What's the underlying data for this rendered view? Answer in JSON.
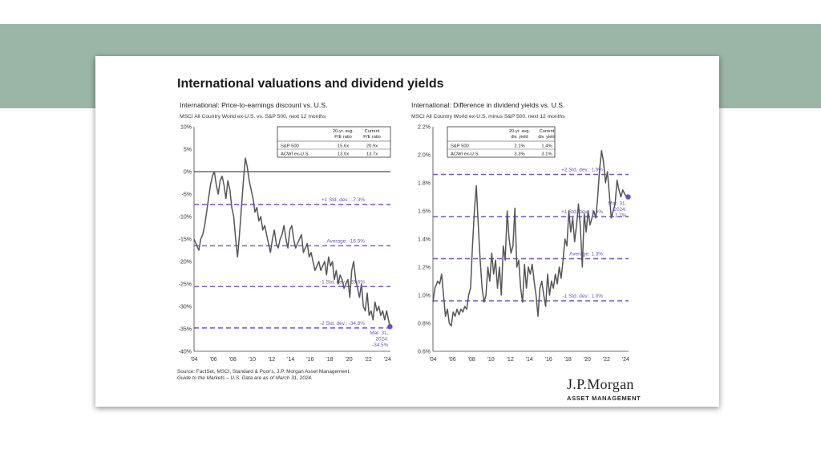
{
  "slide_title": "International valuations and dividend yields",
  "source": "Source: FactSet, MSCI, Standard & Poor's, J.P. Morgan Asset Management.",
  "guide": "Guide to the Markets – U.S. Data are as of March 31, 2024.",
  "logo": {
    "name": "J.P.Morgan",
    "subtitle": "ASSET MANAGEMENT"
  },
  "colors": {
    "band": "#9bb5a7",
    "line": "#555555",
    "dashed": "#7352d8",
    "dot": "#6e4bd6",
    "label": "#6a55b8"
  },
  "chart_data": [
    {
      "type": "line",
      "title": "International: Price-to-earnings discount vs. U.S.",
      "subtitle": "MSCI All Country World ex-U.S. vs. S&P 500, next 12 months",
      "xlabels": [
        "'04",
        "'06",
        "'08",
        "'10",
        "'12",
        "'14",
        "'16",
        "'18",
        "'20",
        "'22",
        "'24"
      ],
      "xrange": [
        2004,
        2024.3
      ],
      "ylim": [
        -40,
        10
      ],
      "yticks": [
        10,
        5,
        0,
        -5,
        -10,
        -15,
        -20,
        -25,
        -30,
        -35,
        -40
      ],
      "ytick_labels": [
        "10%",
        "5%",
        "0%",
        "-5%",
        "-10%",
        "-15%",
        "-20%",
        "-25%",
        "-30%",
        "-35%",
        "-40%"
      ],
      "reference_lines": [
        {
          "value": -7.3,
          "label": "+1 Std. dev.: -7.3%"
        },
        {
          "value": -16.5,
          "label": "Average: -16.5%"
        },
        {
          "value": -25.6,
          "label": "-1 Std. dev.: -25.6%"
        },
        {
          "value": -34.8,
          "label": "-2 Std. dev.: -34.8%"
        }
      ],
      "zero_line": 0,
      "latest": {
        "x": 2024.25,
        "y": -34.5,
        "label": [
          "Mar. 31,",
          "2024:",
          "-34.5%"
        ]
      },
      "table": {
        "headers": [
          "",
          "20-yr. avg.\nP/E ratio",
          "Current\nP/E ratio"
        ],
        "rows": [
          [
            "S&P 500",
            "15.6x",
            "20.9x"
          ],
          [
            "ACWI ex-U.S.",
            "13.0x",
            "13.7x"
          ]
        ]
      },
      "series": [
        {
          "name": "P/E discount",
          "x": [
            2004.0,
            2004.2,
            2004.5,
            2004.7,
            2004.9,
            2005.1,
            2005.3,
            2005.5,
            2005.7,
            2005.9,
            2006.1,
            2006.3,
            2006.5,
            2006.7,
            2006.9,
            2007.1,
            2007.3,
            2007.5,
            2007.7,
            2007.9,
            2008.1,
            2008.3,
            2008.5,
            2008.7,
            2008.9,
            2009.1,
            2009.3,
            2009.5,
            2009.7,
            2009.9,
            2010.1,
            2010.3,
            2010.5,
            2010.7,
            2010.9,
            2011.1,
            2011.3,
            2011.5,
            2011.7,
            2011.9,
            2012.1,
            2012.3,
            2012.5,
            2012.7,
            2012.9,
            2013.1,
            2013.3,
            2013.5,
            2013.7,
            2013.9,
            2014.1,
            2014.3,
            2014.5,
            2014.7,
            2014.9,
            2015.1,
            2015.3,
            2015.5,
            2015.7,
            2015.9,
            2016.1,
            2016.3,
            2016.5,
            2016.7,
            2016.9,
            2017.1,
            2017.3,
            2017.5,
            2017.7,
            2017.9,
            2018.1,
            2018.3,
            2018.5,
            2018.7,
            2018.9,
            2019.1,
            2019.3,
            2019.5,
            2019.7,
            2019.9,
            2020.1,
            2020.3,
            2020.5,
            2020.7,
            2020.9,
            2021.1,
            2021.3,
            2021.5,
            2021.7,
            2021.9,
            2022.1,
            2022.3,
            2022.5,
            2022.7,
            2022.9,
            2023.1,
            2023.3,
            2023.5,
            2023.7,
            2023.9,
            2024.1,
            2024.25
          ],
          "y": [
            -15,
            -16,
            -17.5,
            -15,
            -14,
            -12,
            -9,
            -6,
            -3,
            -1,
            0,
            -3,
            -5,
            -2,
            -1,
            -3,
            -6,
            -2,
            -4,
            -8,
            -10,
            -15,
            -19,
            -14,
            -8,
            -2,
            3,
            1,
            -2,
            -4,
            -6,
            -9,
            -8,
            -11,
            -10,
            -13,
            -12,
            -14,
            -16,
            -18,
            -15,
            -13,
            -16,
            -17,
            -15,
            -14,
            -12,
            -15,
            -17,
            -13,
            -12,
            -15,
            -17,
            -16,
            -15,
            -14,
            -18,
            -17,
            -16,
            -19,
            -18,
            -20,
            -22,
            -21,
            -20,
            -22,
            -21,
            -20,
            -23,
            -19,
            -21,
            -20,
            -24,
            -22,
            -25,
            -23,
            -24,
            -26,
            -25,
            -24,
            -28,
            -22,
            -20,
            -24,
            -26,
            -28,
            -25,
            -30,
            -31,
            -27,
            -32,
            -31,
            -33,
            -29,
            -31,
            -30,
            -32,
            -31,
            -33,
            -31,
            -33,
            -34.5
          ]
        }
      ]
    },
    {
      "type": "line",
      "title": "International: Difference in dividend yields vs. U.S.",
      "subtitle": "MSCI All Country World ex-U.S. minus S&P 500, next 12 months",
      "xlabels": [
        "'04",
        "'06",
        "'08",
        "'10",
        "'12",
        "'14",
        "'16",
        "'18",
        "'20",
        "'22",
        "'24"
      ],
      "xrange": [
        2004,
        2024.3
      ],
      "ylim": [
        0.6,
        2.2
      ],
      "yticks": [
        2.2,
        2.0,
        1.8,
        1.6,
        1.4,
        1.2,
        1.0,
        0.8,
        0.6
      ],
      "ytick_labels": [
        "2.2%",
        "2.0%",
        "1.8%",
        "1.6%",
        "1.4%",
        "1.2%",
        "1.0%",
        "0.8%",
        "0.6%"
      ],
      "reference_lines": [
        {
          "value": 1.86,
          "label": "+2 Std. dev.: 1.9%"
        },
        {
          "value": 1.56,
          "label": "+1 Std. dev.: 1.6%"
        },
        {
          "value": 1.26,
          "label": "Average: 1.3%"
        },
        {
          "value": 0.96,
          "label": "-1 Std. dev.: 1.0%"
        }
      ],
      "latest": {
        "x": 2024.25,
        "y": 1.7,
        "label": [
          "Mar. 31,",
          "2024:",
          "1.7%"
        ]
      },
      "table": {
        "headers": [
          "",
          "20-yr. avg.\ndiv. yield",
          "Current\ndiv. yield"
        ],
        "rows": [
          [
            "S&P 500",
            "2.1%",
            "1.4%"
          ],
          [
            "ACWI ex-U.S.",
            "3.3%",
            "3.1%"
          ]
        ]
      },
      "series": [
        {
          "name": "Dividend yield difference",
          "x": [
            2004.0,
            2004.2,
            2004.5,
            2004.7,
            2004.9,
            2005.1,
            2005.3,
            2005.5,
            2005.7,
            2005.9,
            2006.1,
            2006.3,
            2006.5,
            2006.7,
            2006.9,
            2007.1,
            2007.3,
            2007.5,
            2007.7,
            2007.9,
            2008.1,
            2008.3,
            2008.5,
            2008.7,
            2008.9,
            2009.1,
            2009.3,
            2009.5,
            2009.7,
            2009.9,
            2010.1,
            2010.3,
            2010.5,
            2010.7,
            2010.9,
            2011.1,
            2011.3,
            2011.5,
            2011.7,
            2011.9,
            2012.1,
            2012.3,
            2012.5,
            2012.7,
            2012.9,
            2013.1,
            2013.3,
            2013.5,
            2013.7,
            2013.9,
            2014.1,
            2014.3,
            2014.5,
            2014.7,
            2014.9,
            2015.1,
            2015.3,
            2015.5,
            2015.7,
            2015.9,
            2016.1,
            2016.3,
            2016.5,
            2016.7,
            2016.9,
            2017.1,
            2017.3,
            2017.5,
            2017.7,
            2017.9,
            2018.1,
            2018.3,
            2018.5,
            2018.7,
            2018.9,
            2019.1,
            2019.3,
            2019.5,
            2019.7,
            2019.9,
            2020.1,
            2020.3,
            2020.5,
            2020.7,
            2020.9,
            2021.1,
            2021.3,
            2021.5,
            2021.7,
            2021.9,
            2022.1,
            2022.3,
            2022.5,
            2022.7,
            2022.9,
            2023.1,
            2023.3,
            2023.5,
            2023.7,
            2023.9,
            2024.1,
            2024.25
          ],
          "y": [
            0.95,
            1.05,
            1.1,
            1.08,
            1.15,
            1.0,
            0.85,
            0.9,
            0.8,
            0.78,
            0.88,
            0.85,
            0.9,
            0.86,
            0.9,
            0.88,
            0.92,
            0.9,
            1.0,
            1.05,
            1.35,
            1.6,
            1.78,
            1.5,
            1.25,
            1.05,
            0.95,
            1.0,
            1.2,
            1.1,
            1.3,
            1.15,
            1.25,
            1.05,
            1.2,
            1.0,
            1.35,
            1.25,
            1.6,
            1.4,
            1.3,
            1.35,
            1.62,
            1.2,
            1.25,
            1.05,
            0.95,
            1.22,
            1.05,
            1.2,
            1.15,
            1.22,
            1.1,
            1.0,
            0.85,
            1.05,
            1.1,
            1.0,
            0.92,
            1.15,
            1.0,
            1.1,
            1.05,
            1.15,
            1.08,
            1.2,
            1.12,
            1.25,
            1.4,
            1.35,
            1.6,
            1.45,
            1.55,
            1.38,
            1.5,
            1.65,
            1.48,
            1.2,
            1.58,
            1.45,
            1.6,
            1.5,
            1.55,
            1.6,
            1.55,
            1.7,
            1.9,
            2.03,
            1.95,
            1.8,
            1.88,
            1.72,
            1.55,
            1.6,
            1.65,
            1.82,
            1.75,
            1.7,
            1.75,
            1.72,
            1.7,
            1.7
          ]
        }
      ]
    }
  ]
}
